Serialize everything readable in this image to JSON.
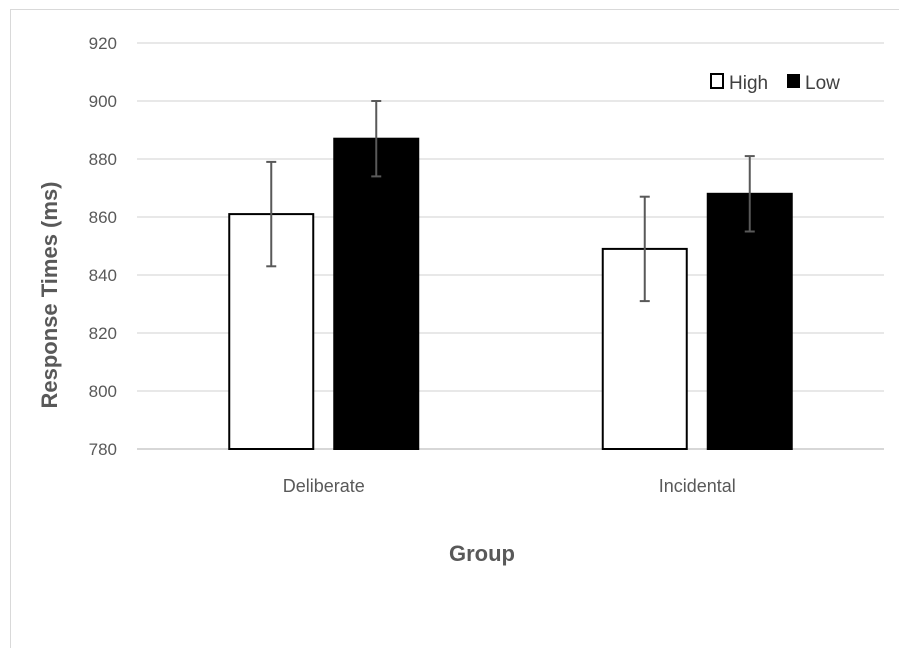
{
  "chart_data": {
    "type": "bar",
    "title": "",
    "xlabel": "Group",
    "ylabel": "Response Times (ms)",
    "ylim": [
      780,
      920
    ],
    "yticks": [
      780,
      800,
      820,
      840,
      860,
      880,
      900,
      920
    ],
    "categories": [
      "Deliberate",
      "Incidental"
    ],
    "series": [
      {
        "name": "High",
        "values": [
          861,
          849
        ],
        "error": [
          18,
          18
        ],
        "color": "#ffffff",
        "stroke": "#000000"
      },
      {
        "name": "Low",
        "values": [
          887,
          868
        ],
        "error": [
          13,
          13
        ],
        "color": "#000000",
        "stroke": "#000000"
      }
    ],
    "grid": true,
    "legend_position": "top-right"
  }
}
